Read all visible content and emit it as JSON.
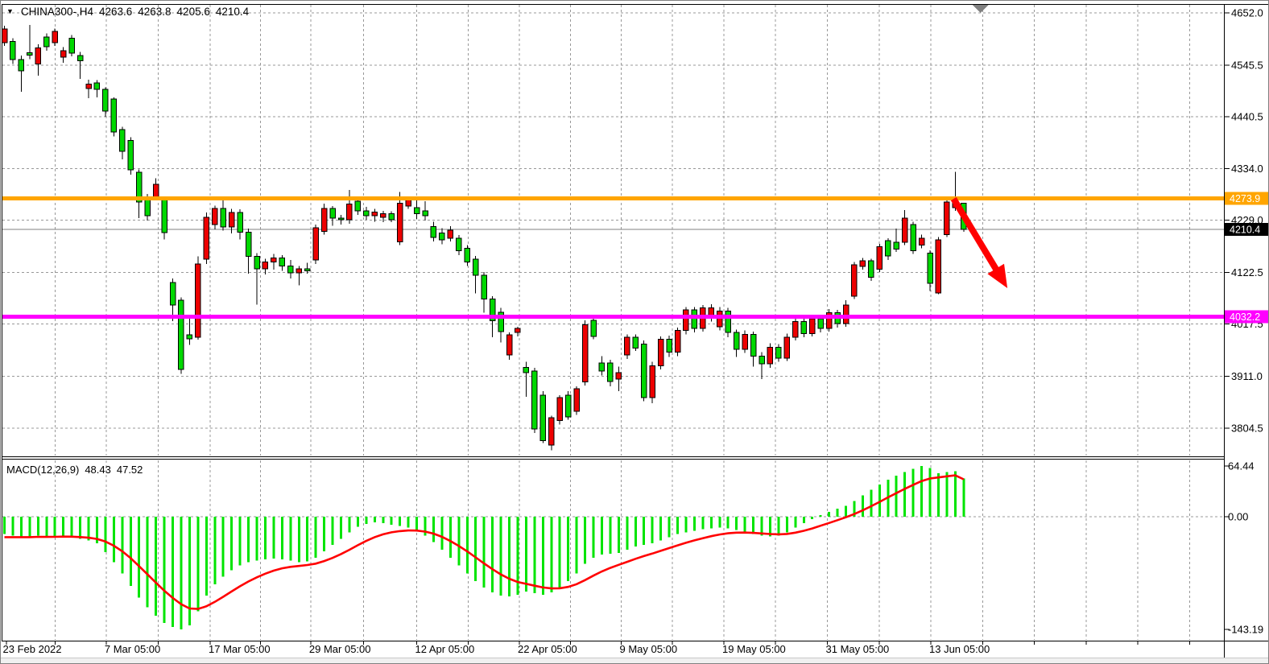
{
  "header": {
    "symbol_tf": "CHINA300-,H4",
    "open": "4263.6",
    "high": "4263.8",
    "low": "4205.6",
    "close": "4210.4"
  },
  "indicator": {
    "label": "MACD(12,26,9)",
    "main_value": "48.43",
    "signal_value": "47.52"
  },
  "chart_data": {
    "type": "candlestick+macd",
    "symbol": "CHINA300-",
    "timeframe": "H4",
    "colors": {
      "bull": "#ed0000",
      "bear": "#00d800",
      "wick": "#000000",
      "macd_hist": "#00e400",
      "macd_signal": "#ff0000",
      "grid": "#989898",
      "hline_resistance": "#ffa500",
      "hline_support": "#ff00ff",
      "last_price_line": "#808080",
      "arrow": "#ff0000",
      "bar_marker": "#808080"
    },
    "main": {
      "ylim": [
        3747.3,
        4670.1
      ],
      "grid_prices": [
        4652.0,
        4545.5,
        4440.5,
        4334.0,
        4229.0,
        4122.5,
        4017.5,
        3911.0,
        3804.5
      ],
      "candles": [
        [
          4591,
          4626,
          4585,
          4619
        ],
        [
          4594,
          4600,
          4548,
          4557
        ],
        [
          4557,
          4565,
          4491,
          4534
        ],
        [
          4571,
          4627,
          4558,
          4566
        ],
        [
          4548,
          4588,
          4524,
          4581
        ],
        [
          4603,
          4610,
          4575,
          4583
        ],
        [
          4591,
          4620,
          4585,
          4614
        ],
        [
          4562,
          4582,
          4550,
          4575
        ],
        [
          4600,
          4607,
          4563,
          4570
        ],
        [
          4565,
          4572,
          4517,
          4554
        ],
        [
          4498,
          4516,
          4478,
          4507
        ],
        [
          4509,
          4515,
          4480,
          4496
        ],
        [
          4496,
          4500,
          4440,
          4452
        ],
        [
          4476,
          4480,
          4400,
          4409
        ],
        [
          4414,
          4420,
          4353,
          4370
        ],
        [
          4392,
          4398,
          4322,
          4332
        ],
        [
          4327,
          4333,
          4233,
          4266
        ],
        [
          4277,
          4283,
          4228,
          4238
        ],
        [
          4277,
          4315,
          4270,
          4302
        ],
        [
          4270,
          4276,
          4190,
          4204
        ],
        [
          4102,
          4110,
          4023,
          4056
        ],
        [
          4066,
          4072,
          3916,
          3925
        ],
        [
          3995,
          4030,
          3975,
          3987
        ],
        [
          3990,
          4155,
          3985,
          4140
        ],
        [
          4150,
          4245,
          4140,
          4235
        ],
        [
          4220,
          4259,
          4210,
          4253
        ],
        [
          4253,
          4274,
          4208,
          4215
        ],
        [
          4215,
          4252,
          4202,
          4245
        ],
        [
          4245,
          4251,
          4190,
          4205
        ],
        [
          4205,
          4212,
          4120,
          4155
        ],
        [
          4155,
          4162,
          4057,
          4130
        ],
        [
          4130,
          4150,
          4118,
          4144
        ],
        [
          4144,
          4160,
          4128,
          4152
        ],
        [
          4152,
          4158,
          4126,
          4136
        ],
        [
          4136,
          4148,
          4110,
          4122
        ],
        [
          4122,
          4136,
          4096,
          4130
        ],
        [
          4130,
          4142,
          4120,
          4126
        ],
        [
          4148,
          4220,
          4140,
          4214
        ],
        [
          4206,
          4263,
          4200,
          4253
        ],
        [
          4253,
          4258,
          4218,
          4233
        ],
        [
          4233,
          4240,
          4220,
          4230
        ],
        [
          4230,
          4291,
          4222,
          4262
        ],
        [
          4268,
          4274,
          4240,
          4248
        ],
        [
          4248,
          4256,
          4230,
          4238
        ],
        [
          4238,
          4252,
          4226,
          4246
        ],
        [
          4235,
          4248,
          4225,
          4242
        ],
        [
          4242,
          4247,
          4225,
          4230
        ],
        [
          4185,
          4287,
          4178,
          4264
        ],
        [
          4258,
          4277,
          4252,
          4270
        ],
        [
          4255,
          4272,
          4232,
          4242
        ],
        [
          4248,
          4268,
          4228,
          4238
        ],
        [
          4216,
          4226,
          4186,
          4194
        ],
        [
          4203,
          4213,
          4180,
          4189
        ],
        [
          4192,
          4217,
          4186,
          4209
        ],
        [
          4192,
          4199,
          4158,
          4167
        ],
        [
          4172,
          4178,
          4136,
          4144
        ],
        [
          4150,
          4156,
          4080,
          4117
        ],
        [
          4117,
          4123,
          4040,
          4068
        ],
        [
          4068,
          4074,
          3990,
          4024
        ],
        [
          4041,
          4050,
          3980,
          4002
        ],
        [
          3954,
          4000,
          3944,
          3995
        ],
        [
          4000,
          4012,
          3992,
          4008
        ],
        [
          3929,
          3940,
          3869,
          3918
        ],
        [
          3921,
          3928,
          3795,
          3803
        ],
        [
          3872,
          3880,
          3774,
          3779
        ],
        [
          3770,
          3830,
          3760,
          3826
        ],
        [
          3820,
          3872,
          3812,
          3867
        ],
        [
          3872,
          3880,
          3822,
          3828
        ],
        [
          3839,
          3890,
          3832,
          3885
        ],
        [
          3899,
          4025,
          3892,
          4016
        ],
        [
          4025,
          4032,
          3986,
          3992
        ],
        [
          3938,
          3952,
          3912,
          3921
        ],
        [
          3938,
          3944,
          3890,
          3900
        ],
        [
          3905,
          3930,
          3880,
          3918
        ],
        [
          3954,
          3996,
          3946,
          3990
        ],
        [
          3990,
          3996,
          3962,
          3968
        ],
        [
          3976,
          3984,
          3860,
          3867
        ],
        [
          3867,
          3940,
          3856,
          3932
        ],
        [
          3932,
          3992,
          3925,
          3986
        ],
        [
          3986,
          3994,
          3950,
          3960
        ],
        [
          3960,
          4010,
          3952,
          4004
        ],
        [
          4004,
          4052,
          3996,
          4046
        ],
        [
          4046,
          4052,
          4000,
          4008
        ],
        [
          4008,
          4056,
          4002,
          4050
        ],
        [
          4030,
          4058,
          4022,
          4050
        ],
        [
          4012,
          4052,
          4004,
          4044
        ],
        [
          4044,
          4050,
          3990,
          4000
        ],
        [
          4000,
          4006,
          3950,
          3966
        ],
        [
          3966,
          4004,
          3958,
          3996
        ],
        [
          3996,
          4002,
          3930,
          3952
        ],
        [
          3952,
          3960,
          3905,
          3936
        ],
        [
          3936,
          3978,
          3928,
          3970
        ],
        [
          3970,
          3976,
          3940,
          3948
        ],
        [
          3948,
          3998,
          3942,
          3990
        ],
        [
          3990,
          4030,
          3984,
          4022
        ],
        [
          4022,
          4028,
          3990,
          3998
        ],
        [
          3998,
          4036,
          3992,
          4028
        ],
        [
          4028,
          4034,
          4000,
          4008
        ],
        [
          4008,
          4048,
          4002,
          4040
        ],
        [
          4040,
          4046,
          4010,
          4018
        ],
        [
          4018,
          4066,
          4012,
          4056
        ],
        [
          4074,
          4144,
          4068,
          4138
        ],
        [
          4135,
          4152,
          4128,
          4146
        ],
        [
          4146,
          4150,
          4105,
          4113
        ],
        [
          4129,
          4181,
          4123,
          4175
        ],
        [
          4187,
          4192,
          4148,
          4156
        ],
        [
          4184,
          4212,
          4164,
          4170
        ],
        [
          4184,
          4250,
          4178,
          4233
        ],
        [
          4220,
          4226,
          4160,
          4167
        ],
        [
          4178,
          4200,
          4172,
          4192
        ],
        [
          4162,
          4168,
          4085,
          4100
        ],
        [
          4081,
          4195,
          4078,
          4189
        ],
        [
          4200,
          4274,
          4195,
          4266
        ],
        [
          4255,
          4328,
          4248,
          4266
        ],
        [
          4263.6,
          4263.8,
          4205.6,
          4210.4
        ]
      ]
    },
    "macd": {
      "ylim": [
        -157.5,
        72.6
      ],
      "axis_labels": [
        {
          "text": "64.44",
          "value": 64.44
        },
        {
          "text": "0.00",
          "value": 0
        },
        {
          "text": "-143.19",
          "value": -143.19
        }
      ],
      "histogram": [
        -22,
        -24,
        -26,
        -25,
        -24,
        -26,
        -25,
        -24,
        -26,
        -28,
        -30,
        -34,
        -45,
        -58,
        -72,
        -88,
        -103,
        -115,
        -126,
        -135,
        -140,
        -143.19,
        -138,
        -120,
        -100,
        -86,
        -76,
        -68,
        -62,
        -58,
        -56,
        -54,
        -53,
        -54,
        -56,
        -58,
        -57,
        -52,
        -44,
        -36,
        -28,
        -20,
        -13,
        -9,
        -7,
        -8,
        -10,
        -12,
        -14,
        -18,
        -24,
        -32,
        -42,
        -52,
        -62,
        -72,
        -82,
        -90,
        -96,
        -100,
        -101,
        -99,
        -95,
        -97,
        -99,
        -96,
        -90,
        -82,
        -72,
        -60,
        -52,
        -48,
        -47,
        -46,
        -42,
        -38,
        -36,
        -34,
        -30,
        -26,
        -22,
        -20,
        -18,
        -16,
        -15,
        -14,
        -15,
        -17,
        -20,
        -22,
        -24,
        -25,
        -24,
        -20,
        -14,
        -8,
        -3,
        2,
        6,
        10,
        14,
        20,
        27,
        34,
        41,
        47,
        52,
        57,
        61,
        64.44,
        62,
        55,
        57,
        58,
        48.43
      ],
      "signal": [
        -26,
        -26,
        -26,
        -26,
        -25.6,
        -25.7,
        -25.6,
        -25.3,
        -25.4,
        -25.9,
        -26.7,
        -28.2,
        -31.5,
        -36.8,
        -43.9,
        -52.7,
        -62.8,
        -73.2,
        -83.8,
        -94,
        -103.2,
        -111.2,
        -116.6,
        -117.2,
        -113.8,
        -108.2,
        -101.8,
        -95,
        -88.4,
        -82.3,
        -77,
        -72.4,
        -68.5,
        -65.6,
        -63.7,
        -62.6,
        -61.4,
        -59.6,
        -56.4,
        -52.4,
        -47.5,
        -42,
        -36.2,
        -30.8,
        -26,
        -22.4,
        -19.9,
        -18.3,
        -17.5,
        -17.6,
        -18.9,
        -21.5,
        -25.6,
        -30.9,
        -37.1,
        -44.1,
        -51.7,
        -59.3,
        -66.7,
        -73.3,
        -78.9,
        -82.9,
        -85.3,
        -87.7,
        -89.9,
        -91.1,
        -90.9,
        -89.2,
        -85.7,
        -80.6,
        -74.9,
        -69.5,
        -65,
        -61.2,
        -57.4,
        -53.5,
        -50,
        -46.8,
        -43.4,
        -39.9,
        -36.4,
        -33.1,
        -30.1,
        -27.3,
        -24.8,
        -22.6,
        -21.1,
        -20.3,
        -20.2,
        -20.6,
        -21.3,
        -22,
        -22.4,
        -21.9,
        -20.3,
        -17.9,
        -14.9,
        -11.5,
        -8,
        -4.4,
        -0.7,
        3.4,
        8.1,
        13.3,
        18.8,
        24.5,
        30,
        35.4,
        40.5,
        45.3,
        48.6,
        49.9,
        51.3,
        52.6,
        47.52
      ]
    },
    "x_ticks": [
      {
        "label": "23 Feb 2022",
        "bar": 0
      },
      {
        "label": "7 Mar 05:00",
        "bar": 12.1
      },
      {
        "label": "17 Mar 05:00",
        "bar": 24.45
      },
      {
        "label": "29 Mar 05:00",
        "bar": 36.4
      },
      {
        "label": "12 Apr 05:00",
        "bar": 49
      },
      {
        "label": "22 Apr 05:00",
        "bar": 61.2
      },
      {
        "label": "9 May 05:00",
        "bar": 73.3
      },
      {
        "label": "19 May 05:00",
        "bar": 85.5
      },
      {
        "label": "31 May 05:00",
        "bar": 97.8
      },
      {
        "label": "13 Jun 05:00",
        "bar": 110.1
      }
    ],
    "hlines": [
      {
        "value": 4273.9,
        "label": "4273.9",
        "color": "#ffa500"
      },
      {
        "value": 4032.2,
        "label": "4032.2",
        "color": "#ff00ff"
      }
    ],
    "last_price": {
      "value": 4210.4,
      "label": "4210.4",
      "bg": "#000000"
    },
    "annotations": {
      "trend_arrow": {
        "from": {
          "bar": 112.8,
          "price": 4272.7
        },
        "to": {
          "bar": 119.2,
          "price": 4090.5
        },
        "color": "#ff0000"
      },
      "current_bar_marker": {
        "bar": 116,
        "color": "#808080"
      }
    }
  }
}
